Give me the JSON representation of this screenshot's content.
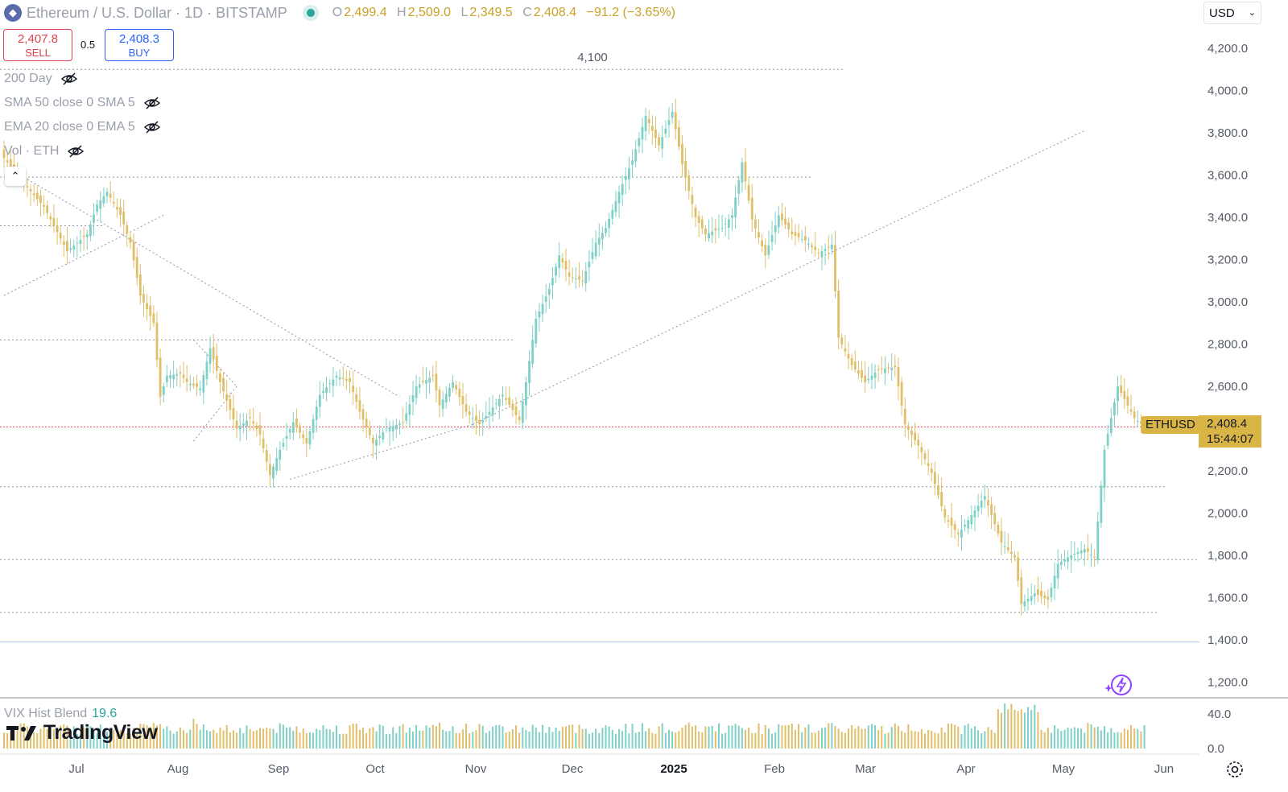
{
  "header": {
    "symbol_icon": "ethereum-icon",
    "title": "Ethereum / U.S. Dollar · 1D · BITSTAMP",
    "ohlc": {
      "o_label": "O",
      "o": "2,499.4",
      "h_label": "H",
      "h": "2,509.0",
      "l_label": "L",
      "l": "2,349.5",
      "c_label": "C",
      "c": "2,408.4",
      "change": "−91.2 (−3.65%)"
    }
  },
  "trade": {
    "sell_price": "2,407.8",
    "sell_label": "SELL",
    "spread": "0.5",
    "buy_price": "2,408.3",
    "buy_label": "BUY"
  },
  "indicators": [
    "200 Day",
    "SMA 50 close 0 SMA 5",
    "EMA 20 close 0 EMA 5",
    "Vol · ETH"
  ],
  "currency": "USD",
  "last": {
    "symbol": "ETHUSD",
    "price": "2,408.4",
    "countdown": "15:44:07"
  },
  "peak_label": "4,100",
  "vix": {
    "label": "VIX Hist Blend",
    "value": "19.6"
  },
  "logo_text": "TradingView",
  "colors": {
    "up": "#7fd0c6",
    "down": "#e0bf6a",
    "accent": "#d9b545",
    "price_line": "#e0424e"
  },
  "chart_data": {
    "type": "candlestick",
    "x_labels": [
      "Jul",
      "Aug",
      "Sep",
      "Oct",
      "Nov",
      "Dec",
      "2025",
      "Feb",
      "Mar",
      "Apr",
      "May",
      "Jun"
    ],
    "y_ticks": [
      "4,200.0",
      "4,000.0",
      "3,800.0",
      "3,600.0",
      "3,400.0",
      "3,200.0",
      "3,000.0",
      "2,800.0",
      "2,600.0",
      "2,200.0",
      "2,000.0",
      "1,800.0",
      "1,600.0",
      "1,400.0",
      "1,200.0"
    ],
    "vol_ticks": [
      "40.0",
      "0.0"
    ],
    "ylim": [
      1150,
      4270
    ],
    "close_path": [
      [
        0,
        3680
      ],
      [
        6,
        3560
      ],
      [
        12,
        3450
      ],
      [
        19,
        3240
      ],
      [
        25,
        3320
      ],
      [
        28,
        3460
      ],
      [
        31,
        3520
      ],
      [
        35,
        3410
      ],
      [
        38,
        3280
      ],
      [
        41,
        3030
      ],
      [
        45,
        2900
      ],
      [
        47,
        2550
      ],
      [
        49,
        2650
      ],
      [
        53,
        2660
      ],
      [
        55,
        2620
      ],
      [
        59,
        2590
      ],
      [
        62,
        2780
      ],
      [
        65,
        2620
      ],
      [
        70,
        2400
      ],
      [
        74,
        2450
      ],
      [
        77,
        2370
      ],
      [
        80,
        2180
      ],
      [
        83,
        2300
      ],
      [
        87,
        2430
      ],
      [
        91,
        2330
      ],
      [
        95,
        2560
      ],
      [
        100,
        2650
      ],
      [
        104,
        2620
      ],
      [
        107,
        2480
      ],
      [
        111,
        2330
      ],
      [
        115,
        2400
      ],
      [
        120,
        2430
      ],
      [
        124,
        2600
      ],
      [
        129,
        2650
      ],
      [
        131,
        2510
      ],
      [
        135,
        2620
      ],
      [
        139,
        2480
      ],
      [
        143,
        2420
      ],
      [
        147,
        2500
      ],
      [
        150,
        2560
      ],
      [
        155,
        2440
      ],
      [
        157,
        2620
      ],
      [
        160,
        2920
      ],
      [
        164,
        3060
      ],
      [
        167,
        3220
      ],
      [
        170,
        3120
      ],
      [
        174,
        3100
      ],
      [
        178,
        3280
      ],
      [
        181,
        3350
      ],
      [
        185,
        3520
      ],
      [
        189,
        3670
      ],
      [
        193,
        3880
      ],
      [
        197,
        3740
      ],
      [
        201,
        3900
      ],
      [
        204,
        3650
      ],
      [
        208,
        3400
      ],
      [
        211,
        3320
      ],
      [
        216,
        3350
      ],
      [
        219,
        3410
      ],
      [
        222,
        3660
      ],
      [
        225,
        3390
      ],
      [
        229,
        3220
      ],
      [
        233,
        3410
      ],
      [
        237,
        3320
      ],
      [
        241,
        3290
      ],
      [
        245,
        3230
      ],
      [
        249,
        3270
      ],
      [
        251,
        2830
      ],
      [
        255,
        2700
      ],
      [
        259,
        2620
      ],
      [
        263,
        2680
      ],
      [
        268,
        2690
      ],
      [
        271,
        2420
      ],
      [
        275,
        2320
      ],
      [
        279,
        2190
      ],
      [
        283,
        1980
      ],
      [
        287,
        1900
      ],
      [
        291,
        1990
      ],
      [
        295,
        2080
      ],
      [
        300,
        1860
      ],
      [
        304,
        1790
      ],
      [
        306,
        1570
      ],
      [
        310,
        1620
      ],
      [
        314,
        1590
      ],
      [
        317,
        1760
      ],
      [
        321,
        1800
      ],
      [
        325,
        1830
      ],
      [
        328,
        1790
      ],
      [
        331,
        2300
      ],
      [
        335,
        2600
      ],
      [
        338,
        2510
      ],
      [
        340,
        2450
      ],
      [
        343,
        2408
      ]
    ],
    "hlines": [
      4100,
      3590,
      3360,
      2820,
      2125,
      1780,
      1530,
      1390
    ],
    "trendlines": [
      [
        [
          0,
          3030
        ],
        [
          48,
          3410
        ]
      ],
      [
        [
          6,
          3590
        ],
        [
          119,
          2550
        ]
      ],
      [
        [
          57,
          2820
        ],
        [
          70,
          2600
        ]
      ],
      [
        [
          57,
          2340
        ],
        [
          70,
          2600
        ]
      ],
      [
        [
          86,
          2160
        ],
        [
          141,
          2420
        ]
      ],
      [
        [
          141,
          2420
        ],
        [
          325,
          3810
        ]
      ]
    ]
  }
}
